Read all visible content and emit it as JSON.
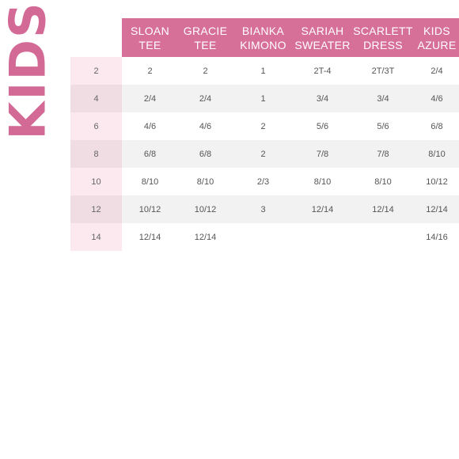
{
  "title": "KIDS",
  "columns": [
    [
      "SLOAN",
      "TEE"
    ],
    [
      "GRACIE",
      "TEE"
    ],
    [
      "BIANKA",
      "KIMONO"
    ],
    [
      "SARIAH",
      "SWEATER"
    ],
    [
      "SCARLETT",
      "DRESS"
    ],
    [
      "KIDS",
      "AZURE"
    ]
  ],
  "rows": [
    {
      "size": "2",
      "values": [
        "2",
        "2",
        "1",
        "2T-4",
        "2T/3T",
        "2/4"
      ]
    },
    {
      "size": "4",
      "values": [
        "2/4",
        "2/4",
        "1",
        "3/4",
        "3/4",
        "4/6"
      ]
    },
    {
      "size": "6",
      "values": [
        "4/6",
        "4/6",
        "2",
        "5/6",
        "5/6",
        "6/8"
      ]
    },
    {
      "size": "8",
      "values": [
        "6/8",
        "6/8",
        "2",
        "7/8",
        "7/8",
        "8/10"
      ]
    },
    {
      "size": "10",
      "values": [
        "8/10",
        "8/10",
        "2/3",
        "8/10",
        "8/10",
        "10/12"
      ]
    },
    {
      "size": "12",
      "values": [
        "10/12",
        "10/12",
        "3",
        "12/14",
        "12/14",
        "12/14"
      ]
    },
    {
      "size": "14",
      "values": [
        "12/14",
        "12/14",
        "",
        "",
        "",
        "14/16"
      ]
    }
  ],
  "colors": {
    "accent": "#d77099",
    "title": "#d26a95"
  }
}
